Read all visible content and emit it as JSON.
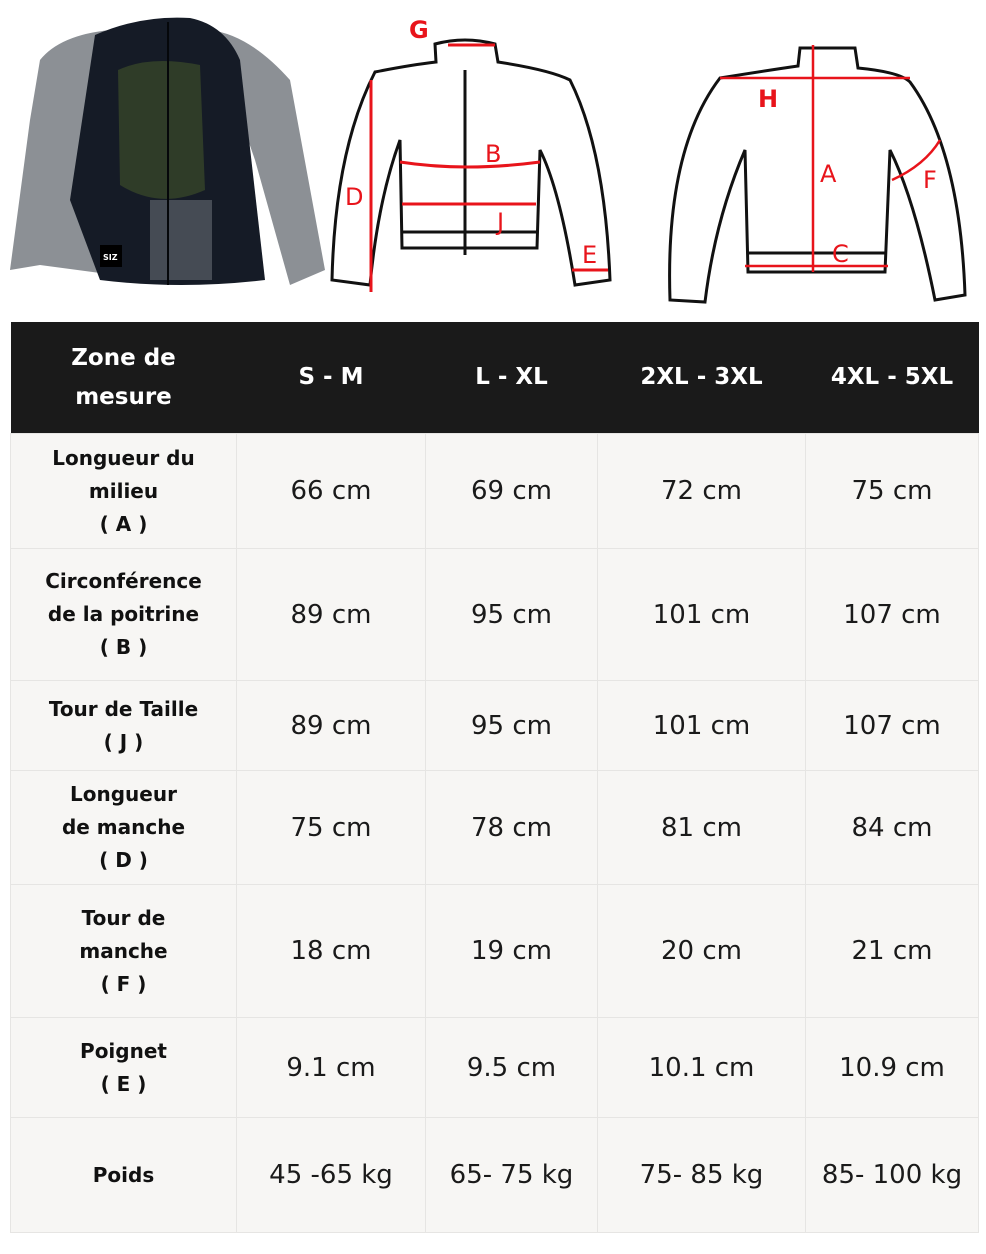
{
  "diagram_labels": {
    "front": {
      "g": "G",
      "b": "B",
      "d": "D",
      "j": "J",
      "e": "E"
    },
    "back": {
      "h": "H",
      "a": "A",
      "c": "C",
      "f": "F"
    }
  },
  "product_logo": "SIZ",
  "colors": {
    "header_bg": "#1a1a1a",
    "row_bg": "#f7f6f4",
    "measure_line": "#e8141b"
  },
  "table": {
    "headers": {
      "zone_line1": "Zone de",
      "zone_line2": "mesure",
      "sizes": [
        "S - M",
        "L - XL",
        "2XL - 3XL",
        "4XL - 5XL"
      ]
    },
    "rows": [
      {
        "label_lines": [
          "Longueur du",
          "milieu"
        ],
        "code": "( A )",
        "values": [
          "66 cm",
          "69 cm",
          "72 cm",
          "75 cm"
        ]
      },
      {
        "label_lines": [
          "Circonférence",
          "de la poitrine"
        ],
        "code": "( B )",
        "values": [
          "89 cm",
          "95 cm",
          "101 cm",
          "107 cm"
        ]
      },
      {
        "label_lines": [
          "Tour de Taille"
        ],
        "code": "( J )",
        "values": [
          "89 cm",
          "95 cm",
          "101 cm",
          "107 cm"
        ]
      },
      {
        "label_lines": [
          "Longueur",
          "de manche"
        ],
        "code": "( D )",
        "values": [
          "75 cm",
          "78 cm",
          "81 cm",
          "84 cm"
        ]
      },
      {
        "label_lines": [
          "Tour de",
          "manche"
        ],
        "code": "( F )",
        "values": [
          "18 cm",
          "19 cm",
          "20 cm",
          "21 cm"
        ]
      },
      {
        "label_lines": [
          "Poignet"
        ],
        "code": "( E )",
        "values": [
          "9.1 cm",
          "9.5 cm",
          "10.1 cm",
          "10.9 cm"
        ]
      },
      {
        "label_lines": [
          "Poids"
        ],
        "code": "",
        "values": [
          "45 -65 kg",
          "65- 75 kg",
          "75- 85 kg",
          "85- 100 kg"
        ]
      }
    ]
  }
}
